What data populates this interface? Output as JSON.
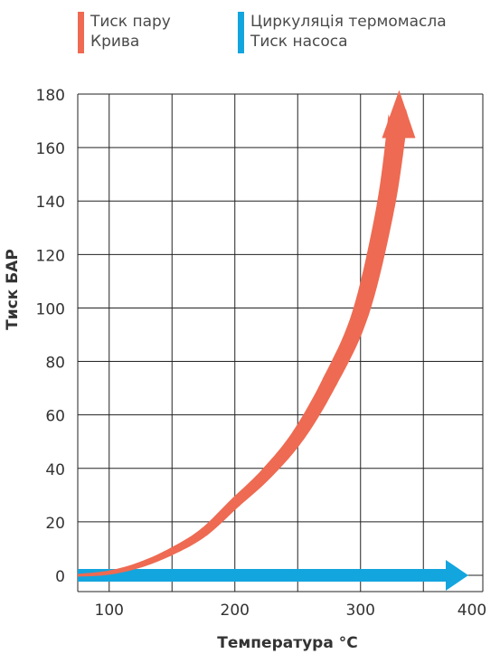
{
  "chart_data": {
    "type": "line",
    "xlabel": "Температура °C",
    "ylabel": "Тиск БАР",
    "xlim": [
      75,
      420
    ],
    "ylim": [
      0,
      180
    ],
    "x_ticks": [
      100,
      200,
      300,
      400
    ],
    "y_ticks": [
      0,
      20,
      40,
      60,
      80,
      100,
      120,
      140,
      160,
      180
    ],
    "grid": true,
    "legend_position": "top",
    "series": [
      {
        "name": "Тиск пару Крива",
        "legend_lines": [
          "Тиск пару",
          "Крива"
        ],
        "color": "#ee6a52",
        "x": [
          75,
          100,
          125,
          150,
          175,
          200,
          225,
          250,
          275,
          300,
          320,
          330
        ],
        "y": [
          0,
          1,
          4,
          9,
          16,
          27,
          38,
          52,
          72,
          98,
          138,
          172
        ]
      },
      {
        "name": "Циркуляція термомасла Тиск насоса",
        "legend_lines": [
          "Циркуляція термомасла",
          "Тиск насоса"
        ],
        "color": "#13a5de",
        "x": [
          75,
          410
        ],
        "y": [
          0,
          0
        ]
      }
    ]
  }
}
